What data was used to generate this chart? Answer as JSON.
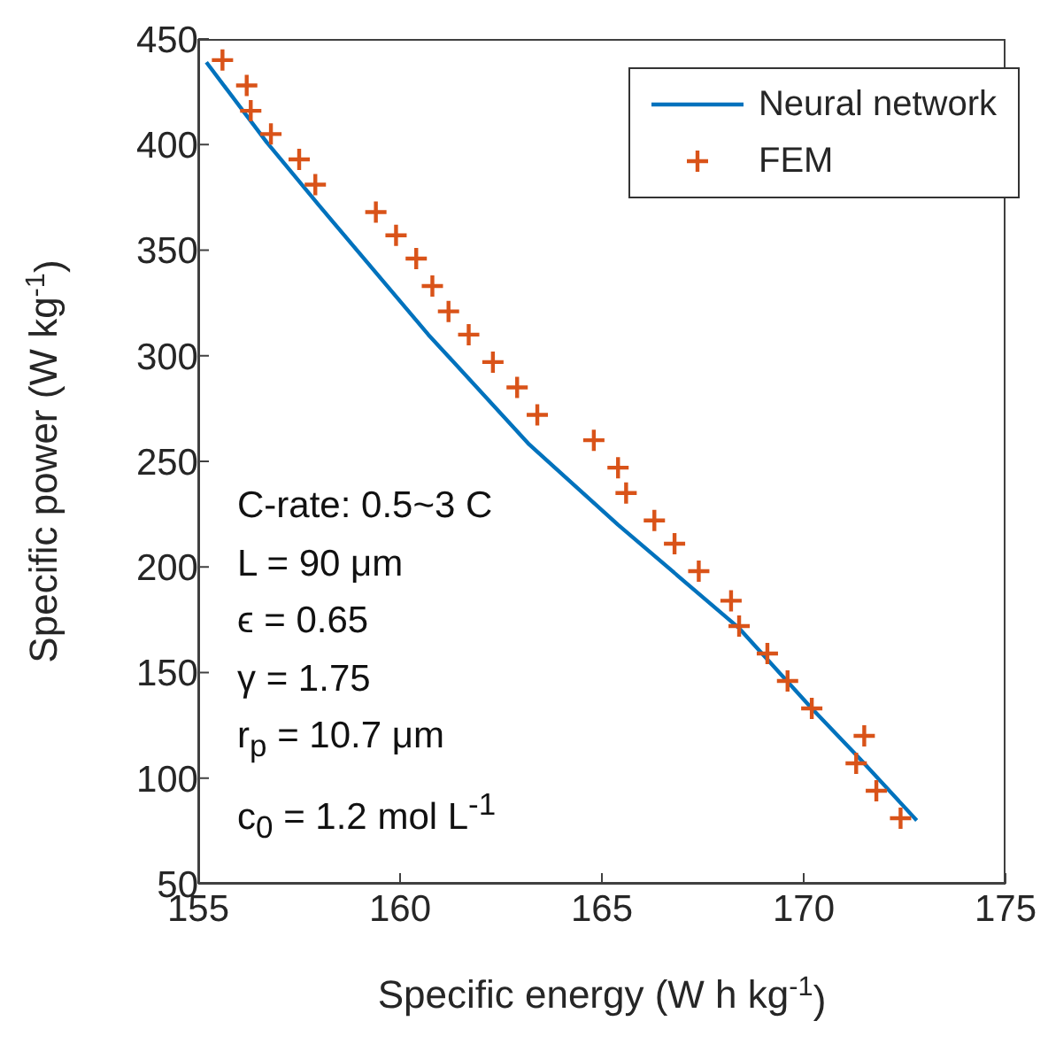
{
  "chart_data": {
    "type": "scatter",
    "xlabel": "Specific energy (W h kg$^{-1}$)",
    "ylabel": "Specific power (W kg$^{-1}$)",
    "xlim": [
      155,
      175
    ],
    "xticks": [
      155,
      160,
      165,
      170,
      175
    ],
    "ylim": [
      50,
      450
    ],
    "yticks": [
      50,
      100,
      150,
      200,
      250,
      300,
      350,
      400,
      450
    ],
    "grid": false,
    "legend": "top right",
    "series": [
      {
        "name": "Neural network",
        "type": "line",
        "color": "#0072bd",
        "marker": "none",
        "line_style": "solid",
        "x": [
          155.2,
          156.7,
          158.0,
          160.7,
          163.2,
          165.4,
          168.4,
          170.2,
          171.4,
          172.8
        ],
        "values": [
          439,
          401,
          371,
          310,
          258,
          220,
          171,
          133,
          109,
          80
        ]
      },
      {
        "name": "FEM",
        "type": "scatter",
        "color": "#d95319",
        "marker": "cross",
        "x": [
          155.6,
          156.2,
          156.3,
          156.8,
          157.5,
          157.9,
          159.4,
          159.9,
          160.4,
          160.8,
          161.2,
          161.7,
          162.3,
          162.9,
          163.4,
          164.8,
          165.4,
          165.6,
          166.3,
          166.8,
          167.4,
          168.2,
          168.4,
          169.1,
          169.6,
          170.2,
          171.5,
          171.3,
          171.8,
          172.4
        ],
        "values": [
          440,
          428,
          416,
          405,
          393,
          381,
          368,
          357,
          346,
          333,
          321,
          310,
          297,
          285,
          272,
          260,
          247,
          235,
          222,
          211,
          198,
          184,
          172,
          159,
          146,
          133,
          120,
          107,
          94,
          81
        ]
      }
    ],
    "annotations": [
      "C-rate: 0.5~3 C",
      "L = 90 μm",
      "ϵ = 0.65",
      "γ = 1.75",
      "r$_{p}$ = 10.7 μm",
      "c$_{0}$ = 1.2 mol L$^{-1}$"
    ]
  }
}
